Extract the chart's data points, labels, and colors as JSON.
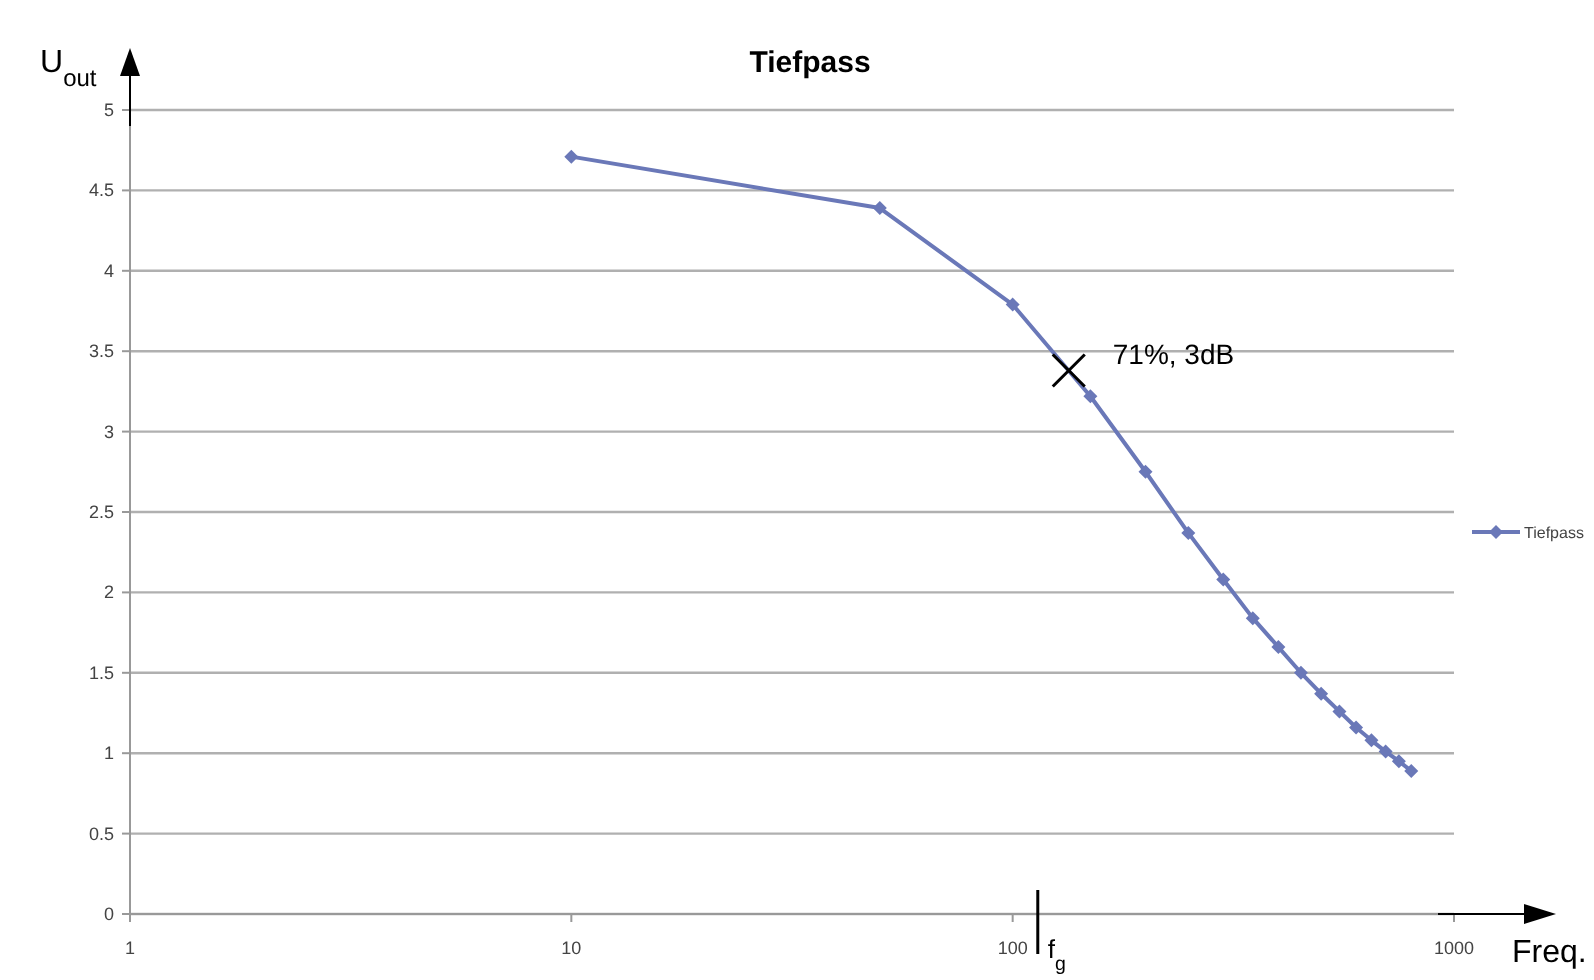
{
  "chart_data": {
    "type": "line",
    "title": "Tiefpass",
    "xlabel": "Freq.",
    "ylabel": "U$_{out}$",
    "x": [
      10,
      50,
      100,
      150,
      200,
      250,
      300,
      350,
      400,
      450,
      500,
      550,
      600,
      650,
      700,
      750,
      800
    ],
    "series": [
      {
        "name": "Tiefpass",
        "color": "#6a78b8",
        "values": [
          4.71,
          4.39,
          3.79,
          3.22,
          2.75,
          2.37,
          2.08,
          1.84,
          1.66,
          1.5,
          1.37,
          1.26,
          1.16,
          1.08,
          1.01,
          0.95,
          0.89
        ]
      }
    ],
    "log": "x",
    "xlim": [
      1,
      1000
    ],
    "xticks": [
      1,
      10,
      100,
      1000
    ],
    "ylim": [
      0,
      5
    ],
    "yticks": [
      0,
      0.5,
      1,
      1.5,
      2,
      2.5,
      3,
      3.5,
      4,
      4.5,
      5
    ],
    "grid": "y",
    "legend": "right",
    "marker": "diamond",
    "line_style": "solid",
    "annotations": [
      {
        "text": "71%, 3dB",
        "x": 134,
        "y": 3.38
      }
    ],
    "ref_lines": [
      {
        "axis": "x",
        "value": 114,
        "label": "f$_{g}$"
      }
    ]
  }
}
